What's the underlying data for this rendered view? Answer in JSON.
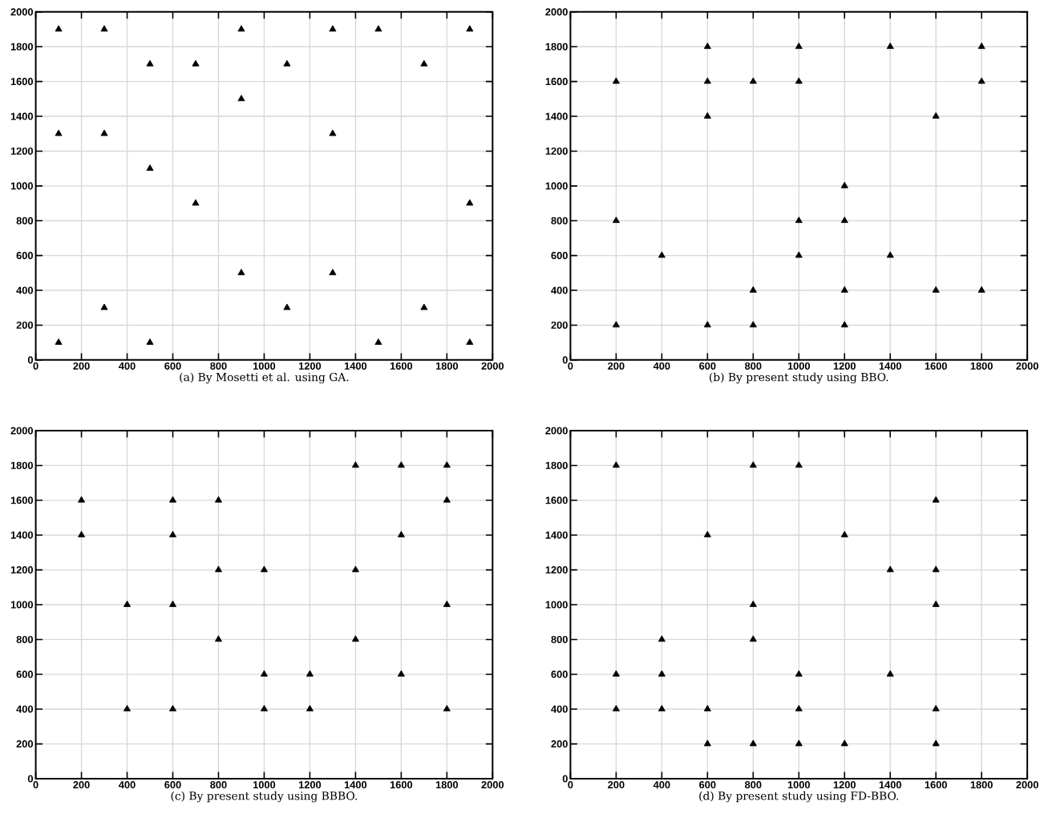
{
  "chart_data": [
    {
      "type": "scatter",
      "annotations": [
        "(a) By Mosetti et al. using GA."
      ],
      "xlim": [
        0,
        2000
      ],
      "ylim": [
        0,
        2000
      ],
      "xticks": [
        0,
        200,
        400,
        600,
        800,
        1000,
        1200,
        1400,
        1600,
        1800,
        2000
      ],
      "yticks": [
        0,
        200,
        400,
        600,
        800,
        1000,
        1200,
        1400,
        1600,
        1800,
        2000
      ],
      "grid": true,
      "marker": "triangle",
      "color": "#000000",
      "x": [
        100,
        300,
        900,
        1300,
        1500,
        1900,
        500,
        700,
        1100,
        1700,
        900,
        100,
        300,
        1300,
        500,
        700,
        1900,
        900,
        1300,
        300,
        1100,
        1700,
        100,
        500,
        1500,
        1900
      ],
      "values": [
        1900,
        1900,
        1900,
        1900,
        1900,
        1900,
        1700,
        1700,
        1700,
        1700,
        1500,
        1300,
        1300,
        1300,
        1100,
        900,
        900,
        500,
        500,
        300,
        300,
        300,
        100,
        100,
        100,
        100
      ]
    },
    {
      "type": "scatter",
      "annotations": [
        "(b) By present study using BBO."
      ],
      "xlim": [
        0,
        2000
      ],
      "ylim": [
        0,
        2000
      ],
      "xticks": [
        0,
        200,
        400,
        600,
        800,
        1000,
        1200,
        1400,
        1600,
        1800,
        2000
      ],
      "yticks": [
        0,
        200,
        400,
        600,
        800,
        1000,
        1200,
        1400,
        1600,
        1800,
        2000
      ],
      "grid": true,
      "marker": "triangle",
      "color": "#000000",
      "x": [
        600,
        1000,
        1400,
        1800,
        200,
        600,
        800,
        1000,
        1800,
        600,
        1600,
        1200,
        200,
        1000,
        1200,
        400,
        1000,
        1400,
        800,
        1200,
        1600,
        1800,
        200,
        600,
        800,
        1200
      ],
      "values": [
        1800,
        1800,
        1800,
        1800,
        1600,
        1600,
        1600,
        1600,
        1600,
        1400,
        1400,
        1000,
        800,
        800,
        800,
        600,
        600,
        600,
        400,
        400,
        400,
        400,
        200,
        200,
        200,
        200
      ]
    },
    {
      "type": "scatter",
      "annotations": [
        "(c) By present study using BBBO."
      ],
      "xlim": [
        0,
        2000
      ],
      "ylim": [
        0,
        2000
      ],
      "xticks": [
        0,
        200,
        400,
        600,
        800,
        1000,
        1200,
        1400,
        1600,
        1800,
        2000
      ],
      "yticks": [
        0,
        200,
        400,
        600,
        800,
        1000,
        1200,
        1400,
        1600,
        1800,
        2000
      ],
      "grid": true,
      "marker": "triangle",
      "color": "#000000",
      "x": [
        1400,
        1600,
        1800,
        200,
        600,
        800,
        1800,
        200,
        600,
        1600,
        800,
        1000,
        1400,
        400,
        600,
        1800,
        800,
        1400,
        1000,
        1200,
        1600,
        400,
        600,
        1000,
        1200,
        1800
      ],
      "values": [
        1800,
        1800,
        1800,
        1600,
        1600,
        1600,
        1600,
        1400,
        1400,
        1400,
        1200,
        1200,
        1200,
        1000,
        1000,
        1000,
        800,
        800,
        600,
        600,
        600,
        400,
        400,
        400,
        400,
        400
      ]
    },
    {
      "type": "scatter",
      "annotations": [
        "(d) By present study using FD-BBO."
      ],
      "xlim": [
        0,
        2000
      ],
      "ylim": [
        0,
        2000
      ],
      "xticks": [
        0,
        200,
        400,
        600,
        800,
        1000,
        1200,
        1400,
        1600,
        1800,
        2000
      ],
      "yticks": [
        0,
        200,
        400,
        600,
        800,
        1000,
        1200,
        1400,
        1600,
        1800,
        2000
      ],
      "grid": true,
      "marker": "triangle",
      "color": "#000000",
      "x": [
        200,
        800,
        1000,
        1600,
        600,
        1200,
        1400,
        1600,
        800,
        1600,
        400,
        800,
        200,
        400,
        1000,
        1400,
        200,
        400,
        600,
        1000,
        1600,
        600,
        800,
        1000,
        1200,
        1600
      ],
      "values": [
        1800,
        1800,
        1800,
        1600,
        1400,
        1400,
        1200,
        1200,
        1000,
        1000,
        800,
        800,
        600,
        600,
        600,
        600,
        400,
        400,
        400,
        400,
        400,
        200,
        200,
        200,
        200,
        200
      ]
    }
  ]
}
